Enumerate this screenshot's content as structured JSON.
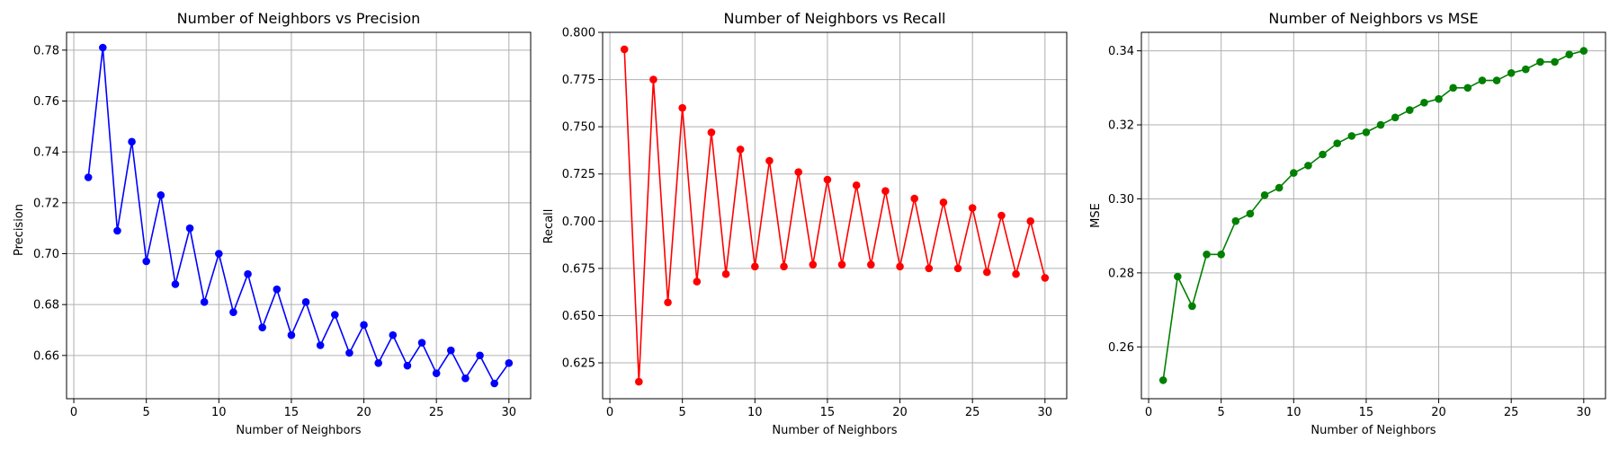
{
  "chart_data": [
    {
      "type": "line",
      "title": "Number of Neighbors vs Precision",
      "xlabel": "Number of Neighbors",
      "ylabel": "Precision",
      "xlim": [
        -0.5,
        31.5
      ],
      "ylim": [
        0.643,
        0.787
      ],
      "xticks": [
        0,
        5,
        10,
        15,
        20,
        25,
        30
      ],
      "xtick_labels": [
        "0",
        "5",
        "10",
        "15",
        "20",
        "25",
        "30"
      ],
      "yticks": [
        0.66,
        0.68,
        0.7,
        0.72,
        0.74,
        0.76,
        0.78
      ],
      "ytick_labels": [
        "0.66",
        "0.68",
        "0.70",
        "0.72",
        "0.74",
        "0.76",
        "0.78"
      ],
      "grid": true,
      "color": "#0000ff",
      "x": [
        1,
        2,
        3,
        4,
        5,
        6,
        7,
        8,
        9,
        10,
        11,
        12,
        13,
        14,
        15,
        16,
        17,
        18,
        19,
        20,
        21,
        22,
        23,
        24,
        25,
        26,
        27,
        28,
        29,
        30
      ],
      "y": [
        0.73,
        0.781,
        0.709,
        0.744,
        0.697,
        0.723,
        0.688,
        0.71,
        0.681,
        0.7,
        0.677,
        0.692,
        0.671,
        0.686,
        0.668,
        0.681,
        0.664,
        0.676,
        0.661,
        0.672,
        0.657,
        0.668,
        0.656,
        0.665,
        0.653,
        0.662,
        0.651,
        0.66,
        0.649,
        0.657
      ]
    },
    {
      "type": "line",
      "title": "Number of Neighbors vs Recall",
      "xlabel": "Number of Neighbors",
      "ylabel": "Recall",
      "xlim": [
        -0.5,
        31.5
      ],
      "ylim": [
        0.606,
        0.8
      ],
      "xticks": [
        0,
        5,
        10,
        15,
        20,
        25,
        30
      ],
      "xtick_labels": [
        "0",
        "5",
        "10",
        "15",
        "20",
        "25",
        "30"
      ],
      "yticks": [
        0.625,
        0.65,
        0.675,
        0.7,
        0.725,
        0.75,
        0.775,
        0.8
      ],
      "ytick_labels": [
        "0.625",
        "0.650",
        "0.675",
        "0.700",
        "0.725",
        "0.750",
        "0.775",
        "0.800"
      ],
      "grid": true,
      "color": "#ff0000",
      "x": [
        1,
        2,
        3,
        4,
        5,
        6,
        7,
        8,
        9,
        10,
        11,
        12,
        13,
        14,
        15,
        16,
        17,
        18,
        19,
        20,
        21,
        22,
        23,
        24,
        25,
        26,
        27,
        28,
        29,
        30
      ],
      "y": [
        0.791,
        0.615,
        0.775,
        0.657,
        0.76,
        0.668,
        0.747,
        0.672,
        0.738,
        0.676,
        0.732,
        0.676,
        0.726,
        0.677,
        0.722,
        0.677,
        0.719,
        0.677,
        0.716,
        0.676,
        0.712,
        0.675,
        0.71,
        0.675,
        0.707,
        0.673,
        0.703,
        0.672,
        0.7,
        0.67
      ]
    },
    {
      "type": "line",
      "title": "Number of Neighbors vs MSE",
      "xlabel": "Number of Neighbors",
      "ylabel": "MSE",
      "xlim": [
        -0.5,
        31.5
      ],
      "ylim": [
        0.246,
        0.345
      ],
      "xticks": [
        0,
        5,
        10,
        15,
        20,
        25,
        30
      ],
      "xtick_labels": [
        "0",
        "5",
        "10",
        "15",
        "20",
        "25",
        "30"
      ],
      "yticks": [
        0.26,
        0.28,
        0.3,
        0.32,
        0.34
      ],
      "ytick_labels": [
        "0.26",
        "0.28",
        "0.30",
        "0.32",
        "0.34"
      ],
      "grid": true,
      "color": "#008000",
      "x": [
        1,
        2,
        3,
        4,
        5,
        6,
        7,
        8,
        9,
        10,
        11,
        12,
        13,
        14,
        15,
        16,
        17,
        18,
        19,
        20,
        21,
        22,
        23,
        24,
        25,
        26,
        27,
        28,
        29,
        30
      ],
      "y": [
        0.251,
        0.279,
        0.271,
        0.285,
        0.285,
        0.294,
        0.296,
        0.301,
        0.303,
        0.307,
        0.309,
        0.312,
        0.315,
        0.317,
        0.318,
        0.32,
        0.322,
        0.324,
        0.326,
        0.327,
        0.33,
        0.33,
        0.332,
        0.332,
        0.334,
        0.335,
        0.337,
        0.337,
        0.339,
        0.34
      ]
    }
  ]
}
